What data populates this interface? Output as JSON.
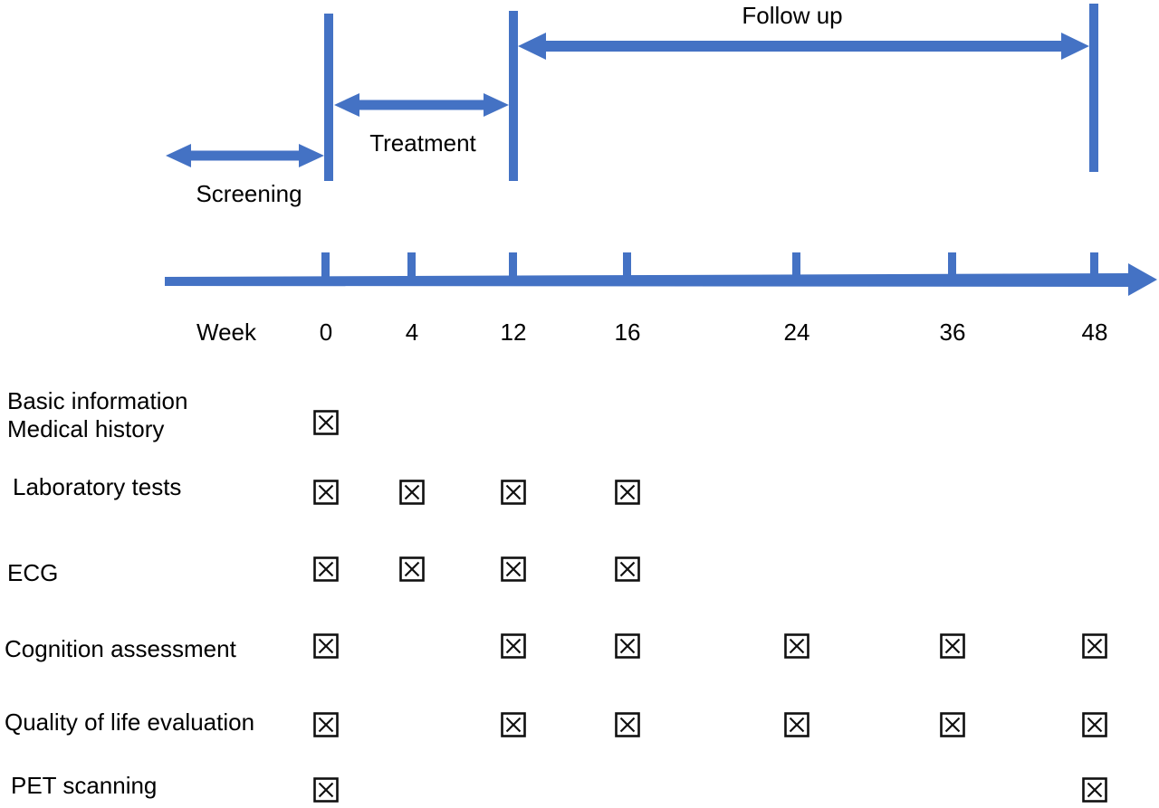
{
  "phases": {
    "screening": "Screening",
    "treatment": "Treatment",
    "follow_up": "Follow up"
  },
  "timeline": {
    "axis_label": "Week",
    "weeks": [
      "0",
      "4",
      "12",
      "16",
      "24",
      "36",
      "48"
    ]
  },
  "schedule_rows": [
    {
      "label_lines": [
        "Basic information",
        "Medical history"
      ],
      "checked_weeks": [
        "0"
      ]
    },
    {
      "label_lines": [
        "Laboratory tests"
      ],
      "checked_weeks": [
        "0",
        "4",
        "12",
        "16"
      ]
    },
    {
      "label_lines": [
        "ECG"
      ],
      "checked_weeks": [
        "0",
        "4",
        "12",
        "16"
      ]
    },
    {
      "label_lines": [
        "Cognition assessment"
      ],
      "checked_weeks": [
        "0",
        "12",
        "16",
        "24",
        "36",
        "48"
      ]
    },
    {
      "label_lines": [
        "Quality of life evaluation"
      ],
      "checked_weeks": [
        "0",
        "12",
        "16",
        "24",
        "36",
        "48"
      ]
    },
    {
      "label_lines": [
        "PET scanning"
      ],
      "checked_weeks": [
        "0",
        "48"
      ]
    }
  ],
  "colors": {
    "accent_blue": "#4472C4",
    "text": "#000000",
    "checkbox_mark": "#111111",
    "background": "#FFFFFF"
  }
}
